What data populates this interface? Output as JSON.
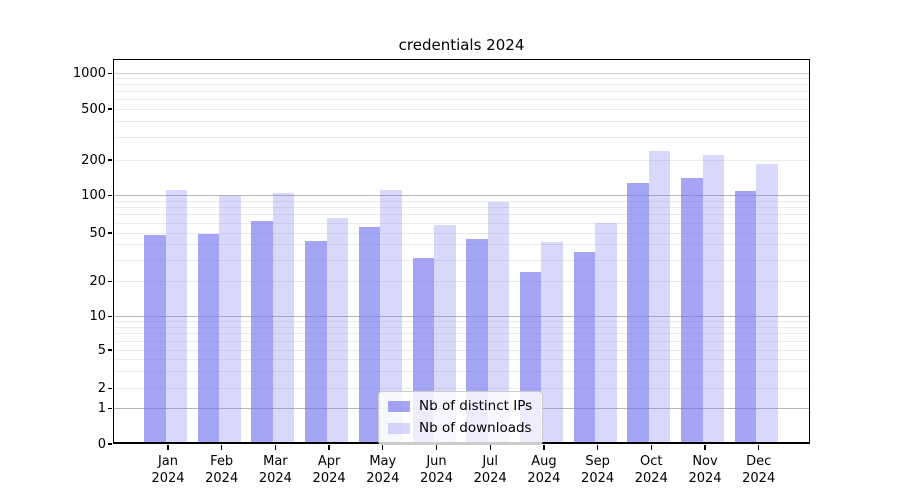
{
  "title": "credentials 2024",
  "legend": {
    "items": [
      {
        "label": "Nb of distinct IPs",
        "color": "rgba(119,119,240,0.66)"
      },
      {
        "label": "Nb of downloads",
        "color": "rgba(119,119,240,0.29)"
      }
    ]
  },
  "y_axis": {
    "tick_labels": [
      "0",
      "1",
      "2",
      "5",
      "10",
      "20",
      "50",
      "100",
      "200",
      "500",
      "1000"
    ]
  },
  "x_axis": {
    "months": [
      "Jan",
      "Feb",
      "Mar",
      "Apr",
      "May",
      "Jun",
      "Jul",
      "Aug",
      "Sep",
      "Oct",
      "Nov",
      "Dec"
    ],
    "year": "2024"
  },
  "chart_data": {
    "type": "bar",
    "title": "credentials 2024",
    "categories": [
      "Jan 2024",
      "Feb 2024",
      "Mar 2024",
      "Apr 2024",
      "May 2024",
      "Jun 2024",
      "Jul 2024",
      "Aug 2024",
      "Sep 2024",
      "Oct 2024",
      "Nov 2024",
      "Dec 2024"
    ],
    "series": [
      {
        "name": "Nb of distinct IPs",
        "color": "rgba(119,119,240,0.66)",
        "values": [
          48,
          49,
          63,
          43,
          56,
          31,
          45,
          24,
          35,
          127,
          140,
          110
        ]
      },
      {
        "name": "Nb of downloads",
        "color": "rgba(119,119,240,0.29)",
        "values": [
          112,
          100,
          105,
          66,
          112,
          58,
          89,
          42,
          60,
          234,
          217,
          184
        ]
      }
    ],
    "xlabel": "",
    "ylabel": "",
    "yscale": "symlog",
    "y_ticks": [
      0,
      1,
      2,
      5,
      10,
      20,
      50,
      100,
      200,
      500,
      1000
    ],
    "ylim": [
      0,
      1300
    ],
    "grid": true,
    "legend_position": "lower center"
  }
}
